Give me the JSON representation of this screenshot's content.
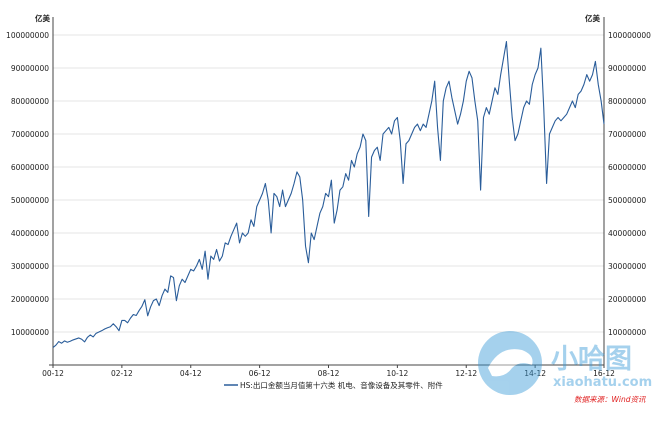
{
  "chart_data": {
    "type": "line",
    "title": "",
    "xlabel": "",
    "ylabel": "",
    "unit_left": "亿美",
    "unit_right": "亿美",
    "x_ticks": [
      "00-12",
      "02-12",
      "04-12",
      "06-12",
      "08-12",
      "10-12",
      "12-12",
      "14-12",
      "16-12"
    ],
    "y_ticks": [
      "10000000",
      "20000000",
      "30000000",
      "40000000",
      "50000000",
      "60000000",
      "70000000",
      "80000000",
      "90000000",
      "100000000"
    ],
    "ylim": [
      0,
      100000000
    ],
    "xlim": [
      "2000-12",
      "2016-12"
    ],
    "grid": true,
    "legend_position": "bottom",
    "line_color": "#2a5d9a",
    "series": [
      {
        "name": "HS:出口金额当月值第十六类 机电、音像设备及其零件、附件",
        "points": [
          [
            "2000-12",
            5300000
          ],
          [
            "2001-01",
            6000000
          ],
          [
            "2001-02",
            7100000
          ],
          [
            "2001-03",
            6600000
          ],
          [
            "2001-04",
            7300000
          ],
          [
            "2001-05",
            6900000
          ],
          [
            "2001-06",
            7200000
          ],
          [
            "2001-07",
            7600000
          ],
          [
            "2001-08",
            7900000
          ],
          [
            "2001-09",
            8200000
          ],
          [
            "2001-10",
            7800000
          ],
          [
            "2001-11",
            7000000
          ],
          [
            "2001-12",
            8400000
          ],
          [
            "2002-01",
            9100000
          ],
          [
            "2002-02",
            8500000
          ],
          [
            "2002-03",
            9600000
          ],
          [
            "2002-04",
            10000000
          ],
          [
            "2002-05",
            10400000
          ],
          [
            "2002-06",
            10900000
          ],
          [
            "2002-07",
            11300000
          ],
          [
            "2002-08",
            11600000
          ],
          [
            "2002-09",
            12500000
          ],
          [
            "2002-10",
            11600000
          ],
          [
            "2002-11",
            10400000
          ],
          [
            "2002-12",
            13500000
          ],
          [
            "2003-01",
            13500000
          ],
          [
            "2003-02",
            12800000
          ],
          [
            "2003-03",
            14200000
          ],
          [
            "2003-04",
            15300000
          ],
          [
            "2003-05",
            15000000
          ],
          [
            "2003-06",
            16500000
          ],
          [
            "2003-07",
            17800000
          ],
          [
            "2003-08",
            19800000
          ],
          [
            "2003-09",
            14900000
          ],
          [
            "2003-10",
            17600000
          ],
          [
            "2003-11",
            19500000
          ],
          [
            "2003-12",
            20000000
          ],
          [
            "2004-01",
            18000000
          ],
          [
            "2004-02",
            21000000
          ],
          [
            "2004-03",
            23000000
          ],
          [
            "2004-04",
            22000000
          ],
          [
            "2004-05",
            27000000
          ],
          [
            "2004-06",
            26500000
          ],
          [
            "2004-07",
            19500000
          ],
          [
            "2004-08",
            24000000
          ],
          [
            "2004-09",
            26000000
          ],
          [
            "2004-10",
            25000000
          ],
          [
            "2004-11",
            27000000
          ],
          [
            "2004-12",
            29000000
          ],
          [
            "2005-01",
            28500000
          ],
          [
            "2005-02",
            30000000
          ],
          [
            "2005-03",
            32000000
          ],
          [
            "2005-04",
            29000000
          ],
          [
            "2005-05",
            34500000
          ],
          [
            "2005-06",
            26000000
          ],
          [
            "2005-07",
            33000000
          ],
          [
            "2005-08",
            32000000
          ],
          [
            "2005-09",
            35000000
          ],
          [
            "2005-10",
            31500000
          ],
          [
            "2005-11",
            33000000
          ],
          [
            "2005-12",
            37000000
          ],
          [
            "2006-01",
            36500000
          ],
          [
            "2006-02",
            39000000
          ],
          [
            "2006-03",
            41000000
          ],
          [
            "2006-04",
            43000000
          ],
          [
            "2006-05",
            37000000
          ],
          [
            "2006-06",
            40000000
          ],
          [
            "2006-07",
            39000000
          ],
          [
            "2006-08",
            40000000
          ],
          [
            "2006-09",
            44000000
          ],
          [
            "2006-10",
            42000000
          ],
          [
            "2006-11",
            48000000
          ],
          [
            "2006-12",
            50000000
          ],
          [
            "2007-01",
            52000000
          ],
          [
            "2007-02",
            55000000
          ],
          [
            "2007-03",
            50000000
          ],
          [
            "2007-04",
            40000000
          ],
          [
            "2007-05",
            52000000
          ],
          [
            "2007-06",
            51000000
          ],
          [
            "2007-07",
            48000000
          ],
          [
            "2007-08",
            53000000
          ],
          [
            "2007-09",
            48000000
          ],
          [
            "2007-10",
            50000000
          ],
          [
            "2007-11",
            52000000
          ],
          [
            "2007-12",
            55000000
          ],
          [
            "2008-01",
            58500000
          ],
          [
            "2008-02",
            57000000
          ],
          [
            "2008-03",
            50000000
          ],
          [
            "2008-04",
            36000000
          ],
          [
            "2008-05",
            31000000
          ],
          [
            "2008-06",
            40000000
          ],
          [
            "2008-07",
            38000000
          ],
          [
            "2008-08",
            42000000
          ],
          [
            "2008-09",
            46000000
          ],
          [
            "2008-10",
            48000000
          ],
          [
            "2008-11",
            52000000
          ],
          [
            "2008-12",
            51000000
          ],
          [
            "2009-01",
            56000000
          ],
          [
            "2009-02",
            43000000
          ],
          [
            "2009-03",
            47000000
          ],
          [
            "2009-04",
            53000000
          ],
          [
            "2009-05",
            54000000
          ],
          [
            "2009-06",
            58000000
          ],
          [
            "2009-07",
            56000000
          ],
          [
            "2009-08",
            62000000
          ],
          [
            "2009-09",
            60000000
          ],
          [
            "2009-10",
            64000000
          ],
          [
            "2009-11",
            66000000
          ],
          [
            "2009-12",
            70000000
          ],
          [
            "2010-01",
            68000000
          ],
          [
            "2010-02",
            45000000
          ],
          [
            "2010-03",
            63000000
          ],
          [
            "2010-04",
            65000000
          ],
          [
            "2010-05",
            66000000
          ],
          [
            "2010-06",
            62000000
          ],
          [
            "2010-07",
            70000000
          ],
          [
            "2010-08",
            71000000
          ],
          [
            "2010-09",
            72000000
          ],
          [
            "2010-10",
            70000000
          ],
          [
            "2010-11",
            74000000
          ],
          [
            "2010-12",
            75000000
          ],
          [
            "2011-01",
            68000000
          ],
          [
            "2011-02",
            55000000
          ],
          [
            "2011-03",
            67000000
          ],
          [
            "2011-04",
            68000000
          ],
          [
            "2011-05",
            70000000
          ],
          [
            "2011-06",
            72000000
          ],
          [
            "2011-07",
            73000000
          ],
          [
            "2011-08",
            71000000
          ],
          [
            "2011-09",
            73000000
          ],
          [
            "2011-10",
            72000000
          ],
          [
            "2011-11",
            76000000
          ],
          [
            "2011-12",
            80000000
          ],
          [
            "2012-01",
            86000000
          ],
          [
            "2012-02",
            72000000
          ],
          [
            "2012-03",
            62000000
          ],
          [
            "2012-04",
            80000000
          ],
          [
            "2012-05",
            84000000
          ],
          [
            "2012-06",
            86000000
          ],
          [
            "2012-07",
            81000000
          ],
          [
            "2012-08",
            77000000
          ],
          [
            "2012-09",
            73000000
          ],
          [
            "2012-10",
            76000000
          ],
          [
            "2012-11",
            80000000
          ],
          [
            "2012-12",
            86000000
          ],
          [
            "2013-01",
            89000000
          ],
          [
            "2013-02",
            87000000
          ],
          [
            "2013-03",
            80000000
          ],
          [
            "2013-04",
            74000000
          ],
          [
            "2013-05",
            53000000
          ],
          [
            "2013-06",
            75000000
          ],
          [
            "2013-07",
            78000000
          ],
          [
            "2013-08",
            76000000
          ],
          [
            "2013-09",
            80000000
          ],
          [
            "2013-10",
            84000000
          ],
          [
            "2013-11",
            82000000
          ],
          [
            "2013-12",
            88000000
          ],
          [
            "2014-01",
            93000000
          ],
          [
            "2014-02",
            98000000
          ],
          [
            "2014-03",
            86000000
          ],
          [
            "2014-04",
            75000000
          ],
          [
            "2014-05",
            68000000
          ],
          [
            "2014-06",
            70000000
          ],
          [
            "2014-07",
            74000000
          ],
          [
            "2014-08",
            78000000
          ],
          [
            "2014-09",
            80000000
          ],
          [
            "2014-10",
            79000000
          ],
          [
            "2014-11",
            85000000
          ],
          [
            "2014-12",
            88000000
          ],
          [
            "2015-01",
            90000000
          ],
          [
            "2015-02",
            96000000
          ],
          [
            "2015-03",
            78000000
          ],
          [
            "2015-04",
            55000000
          ],
          [
            "2015-05",
            70000000
          ],
          [
            "2015-06",
            72000000
          ],
          [
            "2015-07",
            74000000
          ],
          [
            "2015-08",
            75000000
          ],
          [
            "2015-09",
            74000000
          ],
          [
            "2015-10",
            75000000
          ],
          [
            "2015-11",
            76000000
          ],
          [
            "2015-12",
            78000000
          ],
          [
            "2016-01",
            80000000
          ],
          [
            "2016-02",
            78000000
          ],
          [
            "2016-03",
            82000000
          ],
          [
            "2016-04",
            83000000
          ],
          [
            "2016-05",
            85000000
          ],
          [
            "2016-06",
            88000000
          ],
          [
            "2016-07",
            86000000
          ],
          [
            "2016-08",
            88000000
          ],
          [
            "2016-09",
            92000000
          ],
          [
            "2016-10",
            85000000
          ],
          [
            "2016-11",
            80000000
          ],
          [
            "2016-12",
            73000000
          ]
        ]
      }
    ]
  },
  "watermark": {
    "brand_cn": "小哈图",
    "brand_en": "xiaohatu.com"
  },
  "source_note": "数据来源：Wind资讯"
}
